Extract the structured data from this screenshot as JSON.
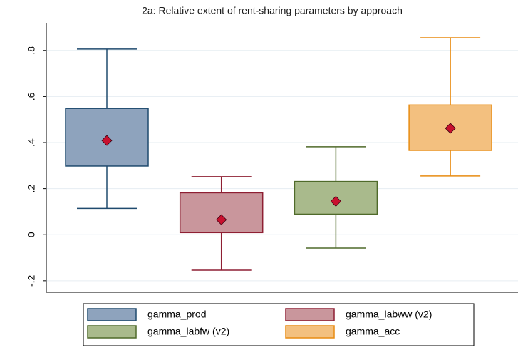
{
  "chart_data": {
    "type": "box",
    "title": "2a: Relative extent of rent-sharing parameters by approach",
    "ylim": [
      -0.25,
      0.92
    ],
    "yticks": [
      {
        "value": -0.2,
        "label": "-.2"
      },
      0,
      {
        "value": 0.2,
        "label": ".2"
      },
      {
        "value": 0.4,
        "label": ".4"
      },
      {
        "value": 0.6,
        "label": ".6"
      },
      {
        "value": 0.8,
        "label": ".8"
      }
    ],
    "grid": true,
    "marker_color": "#c8102e",
    "series": [
      {
        "name": "gamma_prod",
        "color": "#8ea3bd",
        "edge": "#1f4a6e",
        "whisker_low": 0.114,
        "q1": 0.298,
        "q3": 0.548,
        "whisker_high": 0.806,
        "mean": 0.409
      },
      {
        "name": "gamma_labww (v2)",
        "color": "#c9969c",
        "edge": "#8e1f33",
        "whisker_low": -0.154,
        "q1": 0.009,
        "q3": 0.182,
        "whisker_high": 0.252,
        "mean": 0.065
      },
      {
        "name": "gamma_labfw (v2)",
        "color": "#a9ba8c",
        "edge": "#4f6a2a",
        "whisker_low": -0.058,
        "q1": 0.089,
        "q3": 0.231,
        "whisker_high": 0.382,
        "mean": 0.145
      },
      {
        "name": "gamma_acc",
        "color": "#f3c07f",
        "edge": "#e88c12",
        "whisker_low": 0.255,
        "q1": 0.366,
        "q3": 0.563,
        "whisker_high": 0.855,
        "mean": 0.462
      }
    ]
  }
}
